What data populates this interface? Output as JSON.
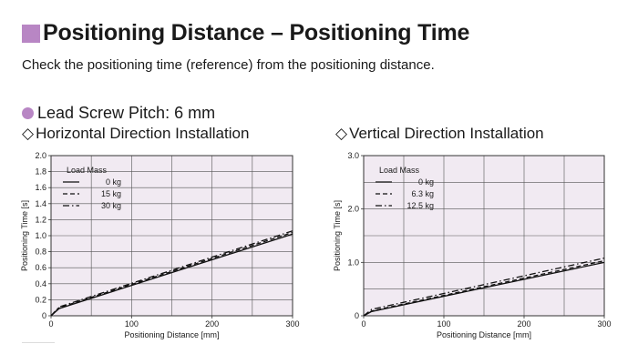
{
  "header": {
    "title": "Positioning Distance – Positioning Time",
    "subtitle": "Check the positioning time (reference) from the positioning distance.",
    "accent_color": "#b886c4",
    "title_icon": "square-icon"
  },
  "section": {
    "pitch_label": "Lead Screw Pitch: 6 mm",
    "bullet_icon": "circle-bullet-icon",
    "panel_icon": "diamond-icon"
  },
  "chart_data": [
    {
      "type": "line",
      "title": "Horizontal Direction Installation",
      "xlabel": "Positioning Distance [mm]",
      "ylabel": "Positioning Time [s]",
      "xlim": [
        0,
        300
      ],
      "ylim": [
        0,
        2.0
      ],
      "xticks": [
        0,
        100,
        200,
        300
      ],
      "yticks": [
        0,
        0.2,
        0.4,
        0.6,
        0.8,
        1.0,
        1.2,
        1.4,
        1.6,
        1.8,
        2.0
      ],
      "yticklabels": [
        "0",
        "0.2",
        "0.4",
        "0.6",
        "0.8",
        "1.0",
        "1.2",
        "1.4",
        "1.6",
        "1.8",
        "2.0"
      ],
      "xgrid": [
        50,
        100,
        150,
        200,
        250
      ],
      "ygrid": [
        0.2,
        0.4,
        0.6,
        0.8,
        1.0,
        1.2,
        1.4,
        1.6,
        1.8
      ],
      "legend_title": "Load Mass",
      "legend_position": "top-left",
      "background": "#f1eaf2",
      "series": [
        {
          "name": "0 kg",
          "style": "solid",
          "x": [
            0,
            10,
            300
          ],
          "y": [
            0,
            0.09,
            1.02
          ]
        },
        {
          "name": "15 kg",
          "style": "dashed",
          "x": [
            0,
            10,
            300
          ],
          "y": [
            0,
            0.1,
            1.04
          ]
        },
        {
          "name": "30 kg",
          "style": "dashdot",
          "x": [
            0,
            10,
            300
          ],
          "y": [
            0,
            0.11,
            1.06
          ]
        }
      ]
    },
    {
      "type": "line",
      "title": "Vertical Direction Installation",
      "xlabel": "Positioning Distance [mm]",
      "ylabel": "Positioning Time [s]",
      "xlim": [
        0,
        300
      ],
      "ylim": [
        0,
        3.0
      ],
      "xticks": [
        0,
        100,
        200,
        300
      ],
      "yticks": [
        0,
        1.0,
        2.0,
        3.0
      ],
      "yticklabels": [
        "0",
        "1.0",
        "2.0",
        "3.0"
      ],
      "xgrid": [
        50,
        100,
        150,
        200,
        250
      ],
      "ygrid": [
        0.5,
        1.0,
        1.5,
        2.0,
        2.5
      ],
      "legend_title": "Load Mass",
      "legend_position": "top-left",
      "background": "#f1eaf2",
      "series": [
        {
          "name": "0 kg",
          "style": "solid",
          "x": [
            0,
            10,
            300
          ],
          "y": [
            0,
            0.08,
            1.0
          ]
        },
        {
          "name": "6.3 kg",
          "style": "dashed",
          "x": [
            0,
            10,
            300
          ],
          "y": [
            0,
            0.09,
            1.03
          ]
        },
        {
          "name": "12.5 kg",
          "style": "dashdot",
          "x": [
            0,
            10,
            300
          ],
          "y": [
            0,
            0.12,
            1.08
          ]
        }
      ]
    }
  ]
}
